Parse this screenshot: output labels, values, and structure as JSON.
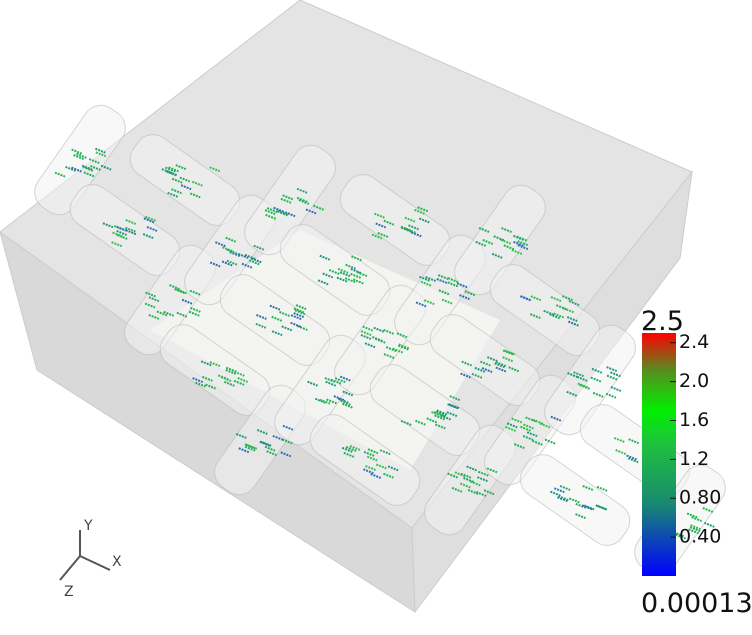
{
  "colorbar": {
    "max": 2.5,
    "min": 0.00013,
    "ticks": [
      2.4,
      {
        "value": 2,
        "label": "2.0"
      },
      1.6,
      1.2,
      {
        "value": 0.8,
        "label": "0.80"
      },
      {
        "value": 0.4,
        "label": "0.40"
      }
    ]
  },
  "axes": {
    "y": "Y",
    "x": "X",
    "z": "Z"
  }
}
